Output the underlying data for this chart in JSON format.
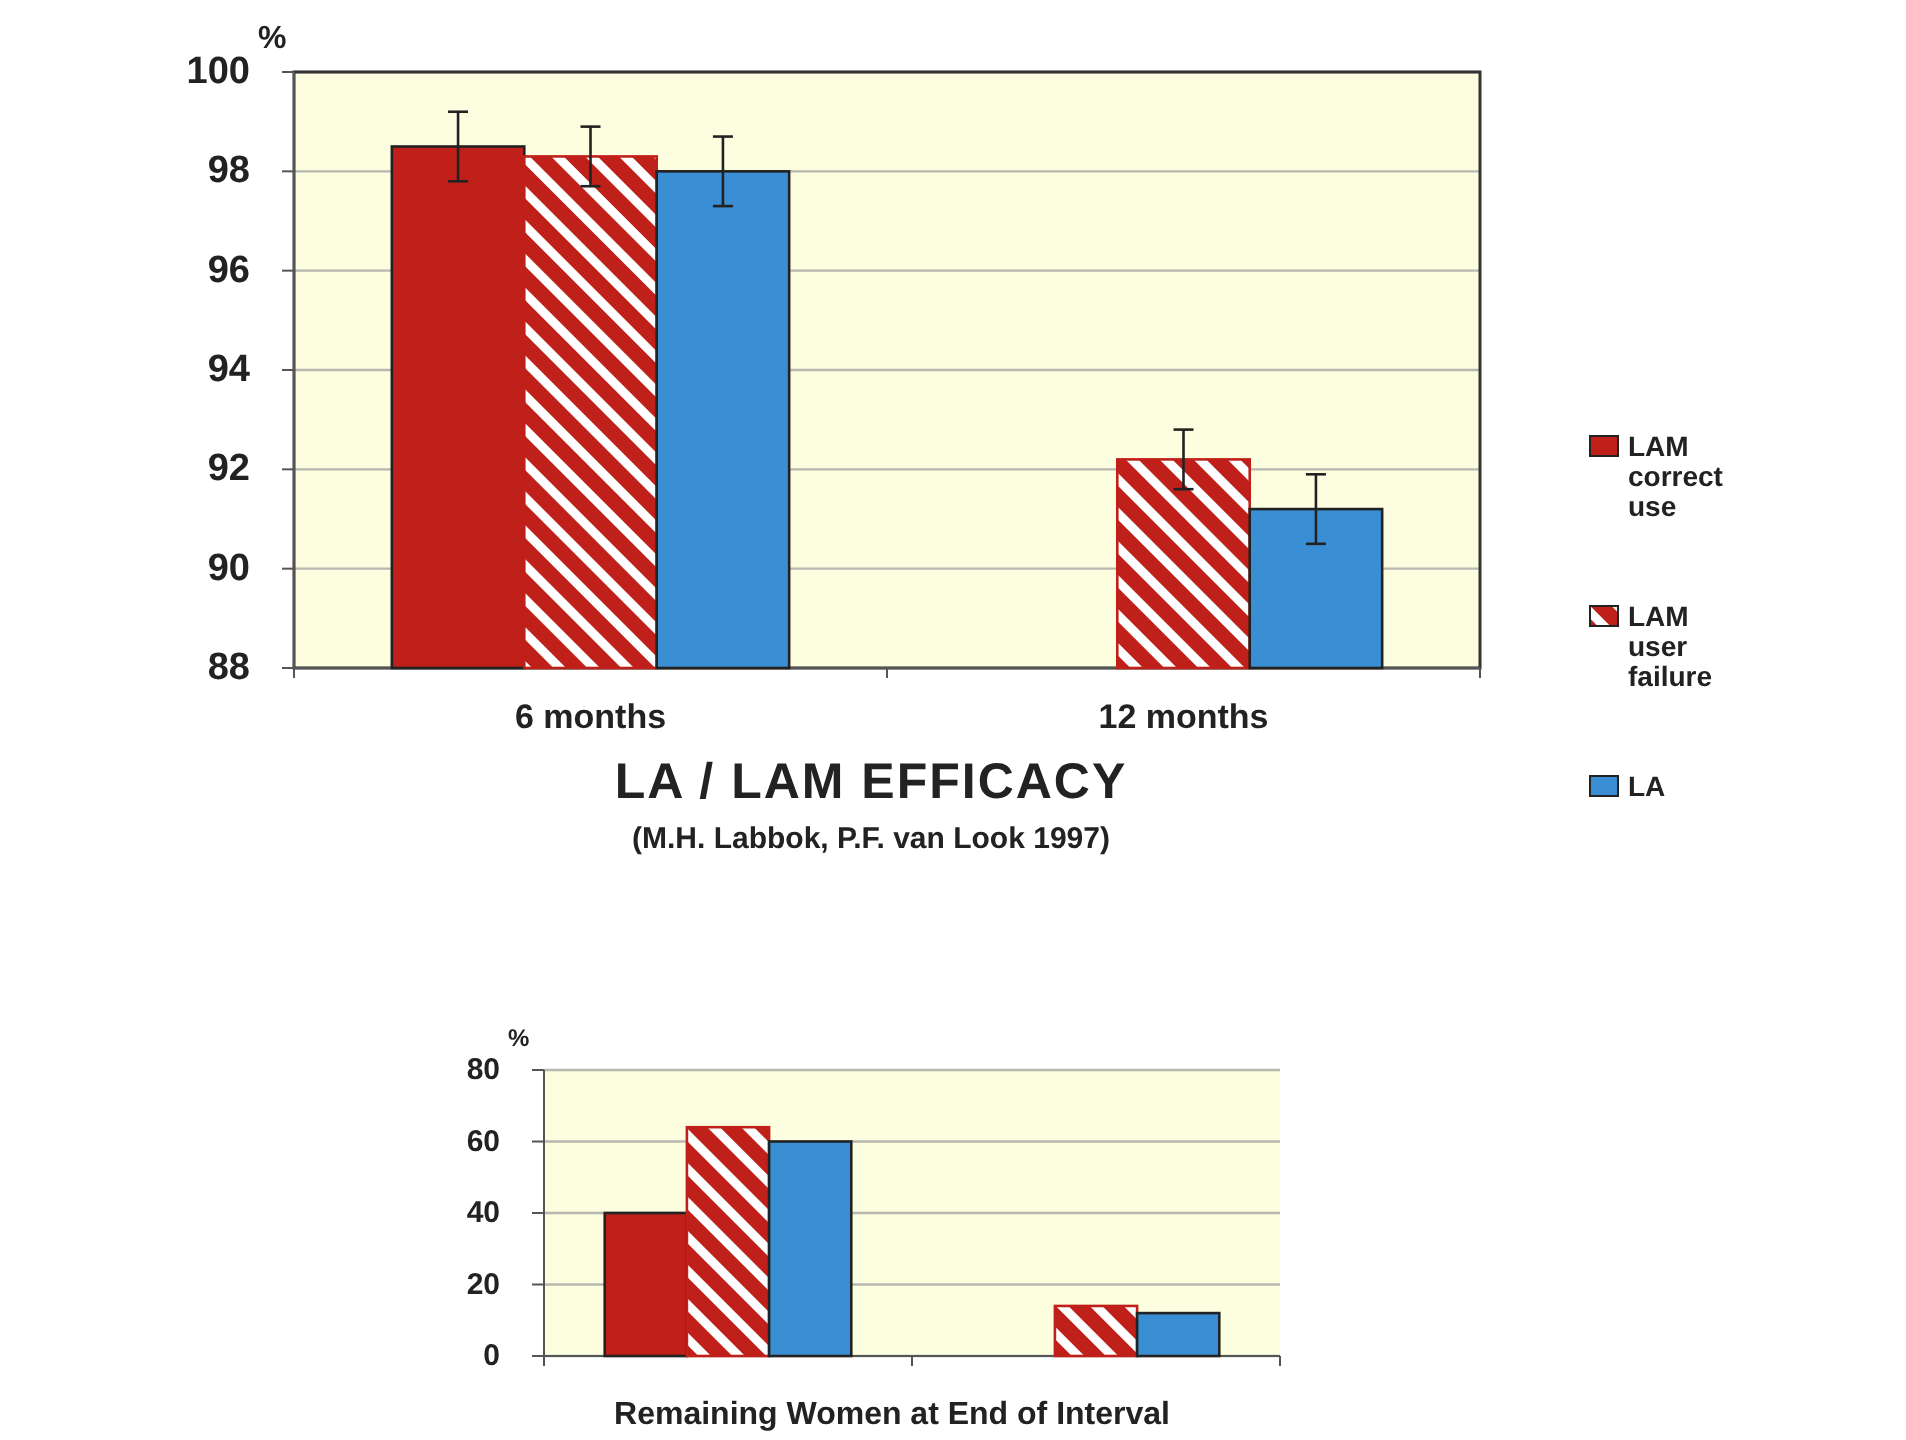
{
  "chart_data": [
    {
      "type": "bar",
      "title": "LA / LAM  EFFICACY",
      "subtitle": "(M.H. Labbok, P.F. van Look  1997)",
      "ylabel": "%",
      "categories": [
        "6 months",
        "12 months"
      ],
      "series": [
        {
          "name": "LAM correct use",
          "color": "#c0201a",
          "values": [
            98.5,
            null
          ],
          "errors": [
            [
              97.8,
              99.2
            ],
            null
          ]
        },
        {
          "name": "LAM user failure",
          "color": "#c0201a",
          "values": [
            98.3,
            92.2
          ],
          "errors": [
            [
              97.7,
              98.9
            ],
            [
              91.6,
              92.8
            ]
          ]
        },
        {
          "name": "LA",
          "color": "#3a8fd4",
          "values": [
            98.0,
            91.2
          ],
          "errors": [
            [
              97.3,
              98.7
            ],
            [
              90.5,
              91.9
            ]
          ]
        }
      ],
      "ylim": [
        88,
        100
      ],
      "yticks": [
        88,
        90,
        92,
        94,
        96,
        98,
        100
      ],
      "grid": "y",
      "legend": "right"
    },
    {
      "type": "bar",
      "xlabel": "Remaining Women at End of Interval",
      "ylabel": "%",
      "categories": [
        null,
        null
      ],
      "series": [
        {
          "color": "#c0201a",
          "values": [
            40,
            null
          ]
        },
        {
          "color": "#c0201a",
          "values": [
            64,
            14
          ]
        },
        {
          "color": "#3a8fd4",
          "values": [
            60,
            12
          ]
        }
      ],
      "ylim": [
        0,
        80
      ],
      "yticks": [
        0,
        20,
        40,
        60,
        80
      ],
      "grid": "y",
      "legend": false
    }
  ]
}
